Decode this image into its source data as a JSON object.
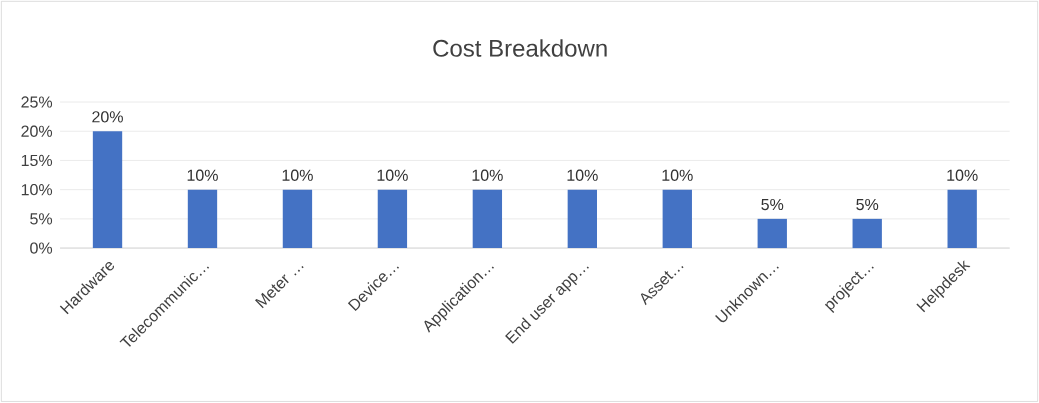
{
  "chart_data": {
    "type": "bar",
    "title": "Cost Breakdown",
    "categories": [
      "Hardware",
      "Telecommunic…",
      "Meter …",
      "Device…",
      "Application…",
      "End user app…",
      "Asset…",
      "Unknown…",
      "project…",
      "Helpdesk"
    ],
    "values": [
      20,
      10,
      10,
      10,
      10,
      10,
      10,
      5,
      5,
      10
    ],
    "value_labels": [
      "20%",
      "10%",
      "10%",
      "10%",
      "10%",
      "10%",
      "10%",
      "5%",
      "5%",
      "10%"
    ],
    "color": "#4472c4",
    "ylim": [
      0,
      25
    ],
    "yticks": [
      {
        "value": 0,
        "label": "0%"
      },
      {
        "value": 5,
        "label": "5%"
      },
      {
        "value": 10,
        "label": "10%"
      },
      {
        "value": 15,
        "label": "15%"
      },
      {
        "value": 20,
        "label": "20%"
      },
      {
        "value": 25,
        "label": "25%"
      }
    ],
    "grid": "y"
  }
}
